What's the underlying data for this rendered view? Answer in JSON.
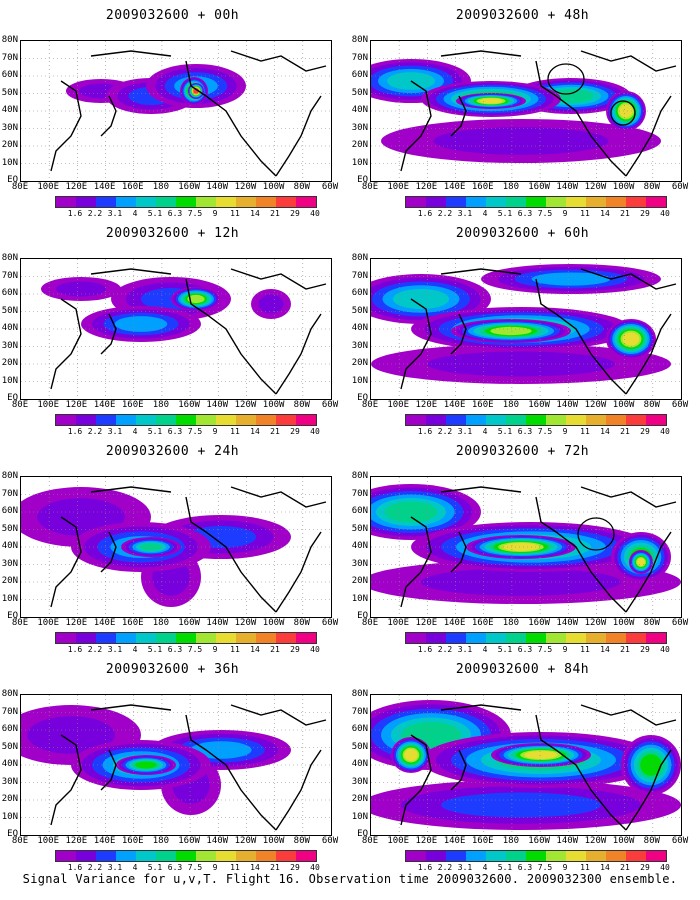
{
  "footer": "Signal Variance for u,v,T. Flight 16. Observation time 2009032600. 2009032300 ensemble.",
  "lat_labels": [
    "80N",
    "70N",
    "60N",
    "50N",
    "40N",
    "30N",
    "20N",
    "10N",
    "EQ"
  ],
  "lon_labels": [
    "80E",
    "100E",
    "120E",
    "140E",
    "160E",
    "180",
    "160W",
    "140W",
    "120W",
    "100W",
    "80W",
    "60W"
  ],
  "colorbar": {
    "labels": [
      "1.6",
      "2.2",
      "3.1",
      "4",
      "5.1",
      "6.3",
      "7.5",
      "9",
      "11",
      "14",
      "21",
      "29",
      "40"
    ],
    "colors": [
      "#a000c8",
      "#7800dc",
      "#1e3cff",
      "#00a0ff",
      "#00c8c8",
      "#00d28c",
      "#00dc00",
      "#a0e632",
      "#e6dc32",
      "#e6af2d",
      "#f08228",
      "#fa3c3c",
      "#f00082"
    ]
  },
  "panels": [
    {
      "title": "2009032600 + 00h"
    },
    {
      "title": "2009032600 + 48h"
    },
    {
      "title": "2009032600 + 12h"
    },
    {
      "title": "2009032600 + 60h"
    },
    {
      "title": "2009032600 + 24h"
    },
    {
      "title": "2009032600 + 72h"
    },
    {
      "title": "2009032600 + 36h"
    },
    {
      "title": "2009032600 + 84h"
    }
  ]
}
